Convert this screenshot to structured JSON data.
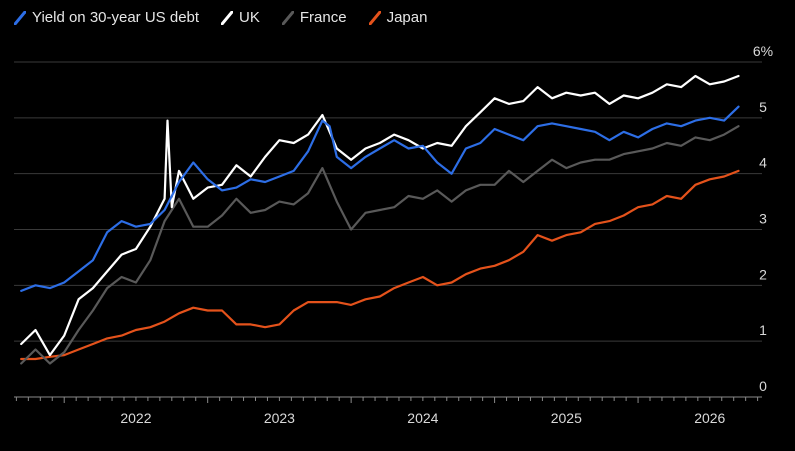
{
  "chart_data": {
    "type": "line",
    "title": "",
    "xlabel": "",
    "ylabel": "",
    "y_unit_suffix": "%",
    "ylim": [
      0,
      6
    ],
    "yticks": [
      0,
      1,
      2,
      3,
      4,
      5,
      6
    ],
    "ytick_labels": [
      "0",
      "1",
      "2",
      "3",
      "4",
      "5",
      "6%"
    ],
    "y_axis_position": "right",
    "xlim": [
      2021.65,
      2026.85
    ],
    "xticks": [
      2022,
      2023,
      2024,
      2025,
      2026
    ],
    "xtick_labels": [
      "2022",
      "2023",
      "2024",
      "2025",
      "2026"
    ],
    "grid": "horizontal",
    "legend_position": "top-left",
    "series": [
      {
        "name": "Yield on 30-year US debt",
        "color": "#2d6ee6",
        "points": [
          [
            2021.7,
            1.9
          ],
          [
            2021.8,
            2.0
          ],
          [
            2021.9,
            1.95
          ],
          [
            2022.0,
            2.05
          ],
          [
            2022.1,
            2.25
          ],
          [
            2022.2,
            2.45
          ],
          [
            2022.3,
            2.95
          ],
          [
            2022.4,
            3.15
          ],
          [
            2022.5,
            3.05
          ],
          [
            2022.6,
            3.1
          ],
          [
            2022.7,
            3.35
          ],
          [
            2022.8,
            3.85
          ],
          [
            2022.9,
            4.2
          ],
          [
            2023.0,
            3.9
          ],
          [
            2023.1,
            3.7
          ],
          [
            2023.2,
            3.75
          ],
          [
            2023.3,
            3.9
          ],
          [
            2023.4,
            3.85
          ],
          [
            2023.5,
            3.95
          ],
          [
            2023.6,
            4.05
          ],
          [
            2023.7,
            4.4
          ],
          [
            2023.8,
            4.95
          ],
          [
            2023.85,
            4.85
          ],
          [
            2023.9,
            4.3
          ],
          [
            2024.0,
            4.1
          ],
          [
            2024.1,
            4.3
          ],
          [
            2024.2,
            4.45
          ],
          [
            2024.3,
            4.6
          ],
          [
            2024.4,
            4.45
          ],
          [
            2024.5,
            4.5
          ],
          [
            2024.6,
            4.2
          ],
          [
            2024.7,
            4.0
          ],
          [
            2024.8,
            4.45
          ],
          [
            2024.9,
            4.55
          ],
          [
            2025.0,
            4.8
          ],
          [
            2025.1,
            4.7
          ],
          [
            2025.2,
            4.6
          ],
          [
            2025.3,
            4.85
          ],
          [
            2025.4,
            4.9
          ],
          [
            2025.5,
            4.85
          ],
          [
            2025.6,
            4.8
          ],
          [
            2025.7,
            4.75
          ],
          [
            2025.8,
            4.6
          ],
          [
            2025.9,
            4.75
          ],
          [
            2026.0,
            4.65
          ],
          [
            2026.1,
            4.8
          ],
          [
            2026.2,
            4.9
          ],
          [
            2026.3,
            4.85
          ],
          [
            2026.4,
            4.95
          ],
          [
            2026.5,
            5.0
          ],
          [
            2026.6,
            4.95
          ],
          [
            2026.7,
            5.2
          ]
        ]
      },
      {
        "name": "UK",
        "color": "#ffffff",
        "points": [
          [
            2021.7,
            0.95
          ],
          [
            2021.8,
            1.2
          ],
          [
            2021.9,
            0.75
          ],
          [
            2022.0,
            1.1
          ],
          [
            2022.1,
            1.75
          ],
          [
            2022.2,
            1.95
          ],
          [
            2022.3,
            2.25
          ],
          [
            2022.4,
            2.55
          ],
          [
            2022.5,
            2.65
          ],
          [
            2022.6,
            3.05
          ],
          [
            2022.7,
            3.55
          ],
          [
            2022.72,
            4.95
          ],
          [
            2022.75,
            3.4
          ],
          [
            2022.8,
            4.05
          ],
          [
            2022.9,
            3.55
          ],
          [
            2023.0,
            3.75
          ],
          [
            2023.1,
            3.8
          ],
          [
            2023.2,
            4.15
          ],
          [
            2023.3,
            3.95
          ],
          [
            2023.4,
            4.3
          ],
          [
            2023.5,
            4.6
          ],
          [
            2023.6,
            4.55
          ],
          [
            2023.7,
            4.7
          ],
          [
            2023.8,
            5.05
          ],
          [
            2023.9,
            4.45
          ],
          [
            2024.0,
            4.25
          ],
          [
            2024.1,
            4.45
          ],
          [
            2024.2,
            4.55
          ],
          [
            2024.3,
            4.7
          ],
          [
            2024.4,
            4.6
          ],
          [
            2024.5,
            4.45
          ],
          [
            2024.6,
            4.55
          ],
          [
            2024.7,
            4.5
          ],
          [
            2024.8,
            4.85
          ],
          [
            2024.9,
            5.1
          ],
          [
            2025.0,
            5.35
          ],
          [
            2025.1,
            5.25
          ],
          [
            2025.2,
            5.3
          ],
          [
            2025.3,
            5.55
          ],
          [
            2025.4,
            5.35
          ],
          [
            2025.5,
            5.45
          ],
          [
            2025.6,
            5.4
          ],
          [
            2025.7,
            5.45
          ],
          [
            2025.8,
            5.25
          ],
          [
            2025.9,
            5.4
          ],
          [
            2026.0,
            5.35
          ],
          [
            2026.1,
            5.45
          ],
          [
            2026.2,
            5.6
          ],
          [
            2026.3,
            5.55
          ],
          [
            2026.4,
            5.75
          ],
          [
            2026.5,
            5.6
          ],
          [
            2026.6,
            5.65
          ],
          [
            2026.7,
            5.75
          ]
        ]
      },
      {
        "name": "France",
        "color": "#595959",
        "points": [
          [
            2021.7,
            0.6
          ],
          [
            2021.8,
            0.85
          ],
          [
            2021.9,
            0.6
          ],
          [
            2022.0,
            0.8
          ],
          [
            2022.1,
            1.2
          ],
          [
            2022.2,
            1.55
          ],
          [
            2022.3,
            1.95
          ],
          [
            2022.4,
            2.15
          ],
          [
            2022.5,
            2.05
          ],
          [
            2022.6,
            2.45
          ],
          [
            2022.7,
            3.15
          ],
          [
            2022.8,
            3.55
          ],
          [
            2022.9,
            3.05
          ],
          [
            2023.0,
            3.05
          ],
          [
            2023.1,
            3.25
          ],
          [
            2023.2,
            3.55
          ],
          [
            2023.3,
            3.3
          ],
          [
            2023.4,
            3.35
          ],
          [
            2023.5,
            3.5
          ],
          [
            2023.6,
            3.45
          ],
          [
            2023.7,
            3.65
          ],
          [
            2023.8,
            4.1
          ],
          [
            2023.9,
            3.5
          ],
          [
            2024.0,
            3.0
          ],
          [
            2024.1,
            3.3
          ],
          [
            2024.2,
            3.35
          ],
          [
            2024.3,
            3.4
          ],
          [
            2024.4,
            3.6
          ],
          [
            2024.5,
            3.55
          ],
          [
            2024.6,
            3.7
          ],
          [
            2024.7,
            3.5
          ],
          [
            2024.8,
            3.7
          ],
          [
            2024.9,
            3.8
          ],
          [
            2025.0,
            3.8
          ],
          [
            2025.1,
            4.05
          ],
          [
            2025.2,
            3.85
          ],
          [
            2025.3,
            4.05
          ],
          [
            2025.4,
            4.25
          ],
          [
            2025.5,
            4.1
          ],
          [
            2025.6,
            4.2
          ],
          [
            2025.7,
            4.25
          ],
          [
            2025.8,
            4.25
          ],
          [
            2025.9,
            4.35
          ],
          [
            2026.0,
            4.4
          ],
          [
            2026.1,
            4.45
          ],
          [
            2026.2,
            4.55
          ],
          [
            2026.3,
            4.5
          ],
          [
            2026.4,
            4.65
          ],
          [
            2026.5,
            4.6
          ],
          [
            2026.6,
            4.7
          ],
          [
            2026.7,
            4.85
          ]
        ]
      },
      {
        "name": "Japan",
        "color": "#e4521b",
        "points": [
          [
            2021.7,
            0.68
          ],
          [
            2021.8,
            0.68
          ],
          [
            2021.9,
            0.72
          ],
          [
            2022.0,
            0.75
          ],
          [
            2022.1,
            0.85
          ],
          [
            2022.2,
            0.95
          ],
          [
            2022.3,
            1.05
          ],
          [
            2022.4,
            1.1
          ],
          [
            2022.5,
            1.2
          ],
          [
            2022.6,
            1.25
          ],
          [
            2022.7,
            1.35
          ],
          [
            2022.8,
            1.5
          ],
          [
            2022.9,
            1.6
          ],
          [
            2023.0,
            1.55
          ],
          [
            2023.1,
            1.55
          ],
          [
            2023.2,
            1.3
          ],
          [
            2023.3,
            1.3
          ],
          [
            2023.4,
            1.25
          ],
          [
            2023.5,
            1.3
          ],
          [
            2023.6,
            1.55
          ],
          [
            2023.7,
            1.7
          ],
          [
            2023.8,
            1.7
          ],
          [
            2023.9,
            1.7
          ],
          [
            2024.0,
            1.65
          ],
          [
            2024.1,
            1.75
          ],
          [
            2024.2,
            1.8
          ],
          [
            2024.3,
            1.95
          ],
          [
            2024.4,
            2.05
          ],
          [
            2024.5,
            2.15
          ],
          [
            2024.6,
            2.0
          ],
          [
            2024.7,
            2.05
          ],
          [
            2024.8,
            2.2
          ],
          [
            2024.9,
            2.3
          ],
          [
            2025.0,
            2.35
          ],
          [
            2025.1,
            2.45
          ],
          [
            2025.2,
            2.6
          ],
          [
            2025.3,
            2.9
          ],
          [
            2025.4,
            2.8
          ],
          [
            2025.5,
            2.9
          ],
          [
            2025.6,
            2.95
          ],
          [
            2025.7,
            3.1
          ],
          [
            2025.8,
            3.15
          ],
          [
            2025.9,
            3.25
          ],
          [
            2026.0,
            3.4
          ],
          [
            2026.1,
            3.45
          ],
          [
            2026.2,
            3.6
          ],
          [
            2026.3,
            3.55
          ],
          [
            2026.4,
            3.8
          ],
          [
            2026.5,
            3.9
          ],
          [
            2026.6,
            3.95
          ],
          [
            2026.7,
            4.05
          ]
        ]
      }
    ]
  }
}
